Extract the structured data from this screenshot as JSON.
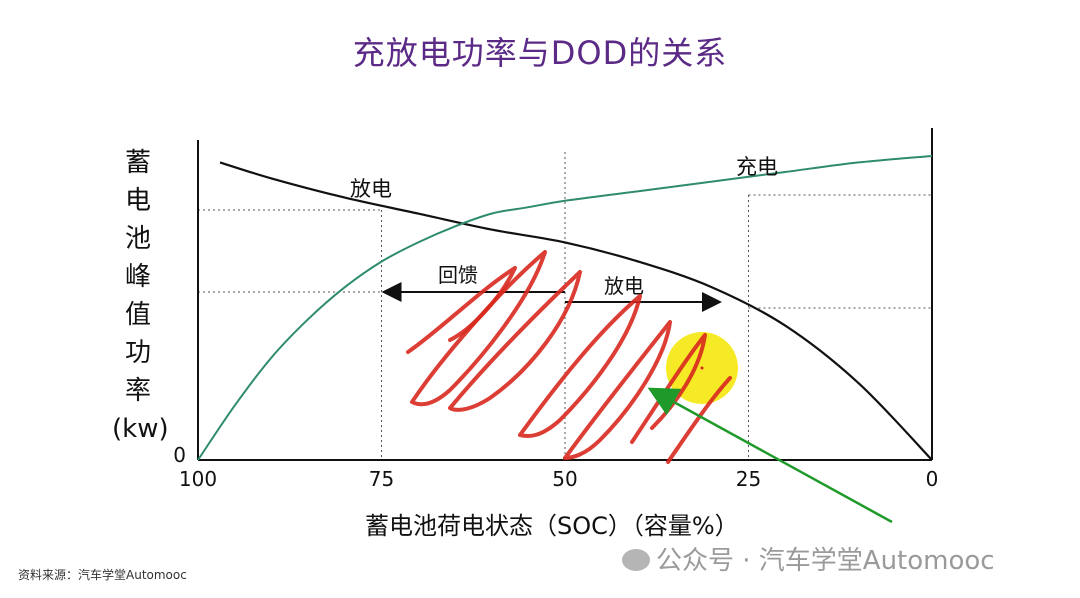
{
  "header": {
    "title": "充放电功率与DOD的关系"
  },
  "chart_data": {
    "type": "line",
    "title": "充放电功率与DOD的关系",
    "ylabel_chars": [
      "蓄",
      "电",
      "池",
      "峰",
      "值",
      "功",
      "率",
      "(kw)"
    ],
    "xlabel": "蓄电池荷电状态（SOC）（容量%）",
    "x_ticks": [
      "100",
      "75",
      "50",
      "25",
      "0"
    ],
    "x_tick_values": [
      100,
      75,
      50,
      25,
      0
    ],
    "y_ticks": [
      "0"
    ],
    "xlim": [
      100,
      0
    ],
    "ylim": [
      0,
      1
    ],
    "series": [
      {
        "name": "放电",
        "color": "#111111",
        "x": [
          97,
          90,
          80,
          70,
          60,
          50,
          40,
          30,
          20,
          10,
          0
        ],
        "y": [
          0.93,
          0.88,
          0.82,
          0.77,
          0.72,
          0.68,
          0.62,
          0.54,
          0.42,
          0.24,
          0.0
        ]
      },
      {
        "name": "充电",
        "color": "#2e8b6e",
        "x": [
          100,
          95,
          90,
          85,
          80,
          75,
          70,
          65,
          60,
          55,
          50,
          40,
          30,
          20,
          10,
          0
        ],
        "y": [
          0.0,
          0.17,
          0.32,
          0.44,
          0.54,
          0.62,
          0.68,
          0.73,
          0.77,
          0.79,
          0.81,
          0.84,
          0.87,
          0.9,
          0.93,
          0.95
        ]
      }
    ],
    "annotations": [
      {
        "text": "放电",
        "x": 75,
        "y": 0.88
      },
      {
        "text": "充电",
        "x": 23,
        "y": 0.96
      },
      {
        "text": "回馈",
        "x_from": 75,
        "x_to": 50,
        "y": 0.62
      },
      {
        "text": "放电",
        "x_from": 50,
        "x_to": 25,
        "y": 0.62
      }
    ],
    "colors": {
      "grid_dotted": "#555555",
      "scribble": "#d8281e",
      "highlight": "#f5e600",
      "pointer": "#1e9a2a"
    }
  },
  "footer": {
    "source": "资料来源：汽车学堂Automooc",
    "watermark": "公众号 · 汽车学堂Automooc"
  }
}
